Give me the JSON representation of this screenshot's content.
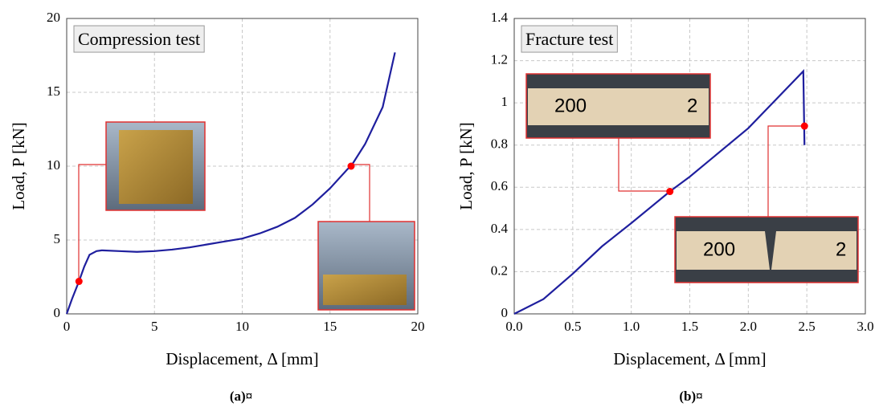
{
  "chart_data": [
    {
      "type": "line",
      "annotation": "Compression test",
      "xlabel": "Displacement, Δ [mm]",
      "ylabel": "Load, P [kN]",
      "caption": "(a)¤",
      "x": [
        0,
        0.3,
        0.7,
        1,
        1.3,
        1.7,
        2,
        3,
        4,
        5,
        6,
        7,
        8,
        9,
        10,
        11,
        12,
        13,
        14,
        15,
        16,
        16.2,
        17,
        18,
        18.7
      ],
      "values": [
        0,
        1,
        2.2,
        3.2,
        4,
        4.25,
        4.3,
        4.25,
        4.2,
        4.25,
        4.35,
        4.5,
        4.7,
        4.9,
        5.1,
        5.45,
        5.9,
        6.5,
        7.4,
        8.5,
        9.8,
        10,
        11.5,
        14,
        17.7
      ],
      "color": "#1f1f9e",
      "markers": {
        "x": [
          0.7,
          16.2
        ],
        "values": [
          2.2,
          10
        ],
        "color": "#ff0000"
      },
      "xlim": [
        0,
        20
      ],
      "xticks": [
        0,
        5,
        10,
        15,
        20
      ],
      "ylim": [
        0,
        20
      ],
      "yticks": [
        0,
        5,
        10,
        15,
        20
      ],
      "grid": true
    },
    {
      "type": "line",
      "annotation": "Fracture test",
      "xlabel": "Displacement, Δ [mm]",
      "ylabel": "Load, P [kN]",
      "caption": "(b)¤",
      "x": [
        0,
        0.25,
        0.5,
        0.75,
        1,
        1.33,
        1.5,
        2,
        2.47,
        2.48
      ],
      "values": [
        0,
        0.07,
        0.19,
        0.32,
        0.43,
        0.58,
        0.65,
        0.88,
        1.15,
        0.8
      ],
      "color": "#1f1f9e",
      "markers": {
        "x": [
          1.33,
          2.48
        ],
        "values": [
          0.58,
          0.89
        ],
        "color": "#ff0000"
      },
      "xlim": [
        0,
        3
      ],
      "xticks": [
        {
          "value": 0,
          "label": "0.0"
        },
        0.5,
        {
          "value": 1,
          "label": "1.0"
        },
        1.5,
        {
          "value": 2,
          "label": "2.0"
        },
        2.5,
        {
          "value": 3,
          "label": "3.0"
        }
      ],
      "ylim": [
        0,
        1.4
      ],
      "yticks": [
        0,
        0.2,
        0.4,
        0.6,
        0.8,
        1,
        1.2,
        1.4
      ],
      "grid": true
    }
  ]
}
